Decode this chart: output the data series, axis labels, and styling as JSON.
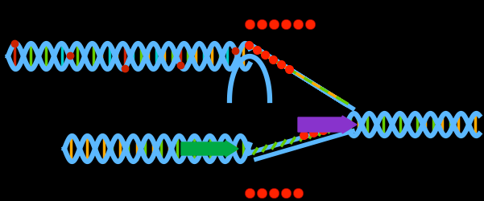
{
  "background_color": "#000000",
  "fig_width": 6.01,
  "fig_height": 2.5,
  "dpi": 100,
  "helix_color": "#4da6ff",
  "helix_outline": "#1a5fb4",
  "strand_blue": "#5bb8ff",
  "bar_orange": "#ffaa00",
  "bar_green": "#66cc00",
  "bar_cyan": "#00cccc",
  "bar_dark": "#1a1a6e",
  "red_ball": "#ff2200",
  "purple_arrow": "#8833cc",
  "green_arrow": "#00aa44",
  "nick_red": "#cc2200",
  "yellow_line": "#ffdd00"
}
